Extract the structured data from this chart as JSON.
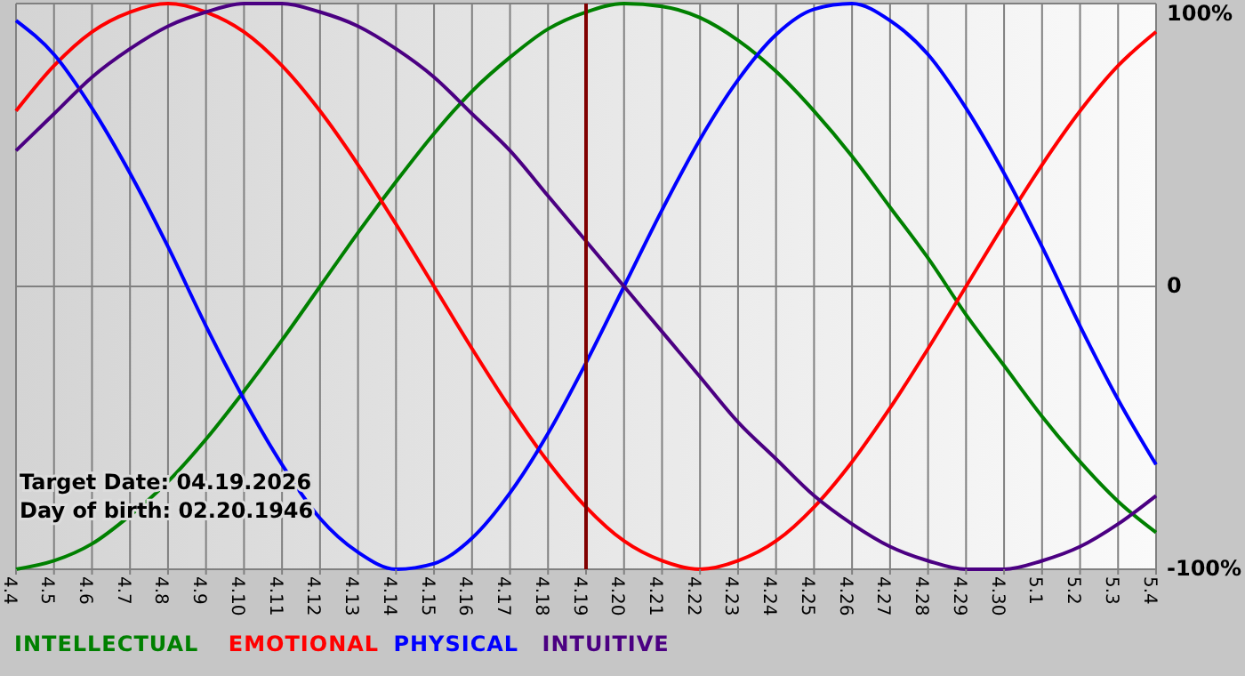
{
  "chart_data": {
    "type": "line",
    "categories": [
      "4.4",
      "4.5",
      "4.6",
      "4.7",
      "4.8",
      "4.9",
      "4.10",
      "4.11",
      "4.12",
      "4.13",
      "4.14",
      "4.15",
      "4.16",
      "4.17",
      "4.18",
      "4.19",
      "4.20",
      "4.21",
      "4.22",
      "4.23",
      "4.24",
      "4.25",
      "4.26",
      "4.27",
      "4.28",
      "4.29",
      "4.30",
      "5.1",
      "5.2",
      "5.3",
      "5.4"
    ],
    "series": [
      {
        "name": "INTELLECTUAL",
        "color": "#008000",
        "values": [
          -100,
          -97,
          -91,
          -81,
          -69,
          -54,
          -37,
          -19,
          0,
          19,
          37,
          54,
          69,
          81,
          91,
          97,
          100,
          99,
          95,
          87,
          76,
          62,
          46,
          28,
          10,
          -10,
          -28,
          -46,
          -62,
          -76,
          -87
        ]
      },
      {
        "name": "EMOTIONAL",
        "color": "#ff0000",
        "values": [
          62,
          78,
          90,
          97,
          100,
          97,
          90,
          78,
          62,
          43,
          22,
          0,
          -22,
          -43,
          -62,
          -78,
          -90,
          -97,
          -100,
          -97,
          -90,
          -78,
          -62,
          -43,
          -22,
          0,
          22,
          43,
          62,
          78,
          90
        ]
      },
      {
        "name": "PHYSICAL",
        "color": "#0000ff",
        "values": [
          94,
          82,
          63,
          40,
          14,
          -14,
          -40,
          -63,
          -82,
          -94,
          -100,
          -98,
          -89,
          -73,
          -52,
          -27,
          0,
          27,
          52,
          73,
          89,
          98,
          100,
          94,
          82,
          63,
          40,
          14,
          -14,
          -40,
          -63
        ]
      },
      {
        "name": "INTUITIVE",
        "color": "#4b0082",
        "values": [
          48,
          61,
          74,
          84,
          92,
          97,
          100,
          100,
          97,
          92,
          84,
          74,
          61,
          48,
          32,
          16,
          0,
          -16,
          -32,
          -48,
          -61,
          -74,
          -84,
          -92,
          -97,
          -100,
          -100,
          -97,
          -92,
          -84,
          -74
        ]
      }
    ],
    "ylim": [
      -100,
      100
    ],
    "yticks": [
      {
        "value": 100,
        "label": "100%"
      },
      0,
      {
        "value": -100,
        "label": "-100%"
      }
    ],
    "grid": true,
    "legend": "bottom left",
    "ref_lines": [
      {
        "axis": "x",
        "value": "4.19",
        "color": "#800000"
      }
    ],
    "annotations": [
      "Target Date: 04.19.2026",
      "Day of birth: 02.20.1946"
    ]
  }
}
